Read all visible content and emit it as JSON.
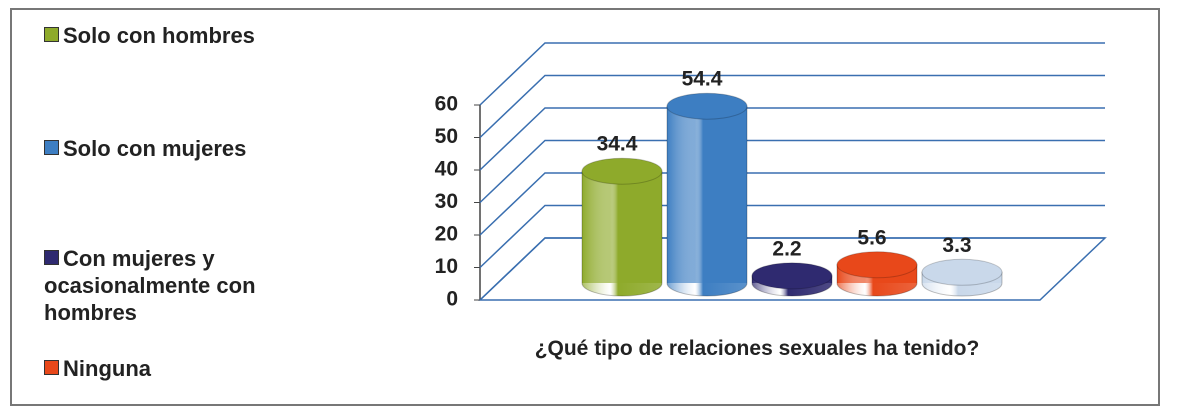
{
  "chart_data": {
    "type": "bar3d",
    "x_label": "¿Qué tipo de relaciones sexuales ha tenido?",
    "series": [
      {
        "name": "Solo con hombres",
        "color": "#8eaa2b",
        "values": [
          34.4
        ]
      },
      {
        "name": "Solo con mujeres",
        "color": "#3d7ec2",
        "values": [
          54.4
        ]
      },
      {
        "name": "Con mujeres y ocasionalmente con hombres",
        "color": "#2f2a70",
        "values": [
          2.2
        ]
      },
      {
        "name": "Ninguna",
        "color": "#e8481a",
        "values": [
          5.6
        ]
      },
      {
        "name": null,
        "color": "#c9d8ea",
        "values": [
          3.3
        ]
      }
    ],
    "ylim": [
      0,
      60
    ],
    "yticks": [
      0,
      10,
      20,
      30,
      40,
      50,
      60
    ],
    "grid": true,
    "legend": "left"
  }
}
